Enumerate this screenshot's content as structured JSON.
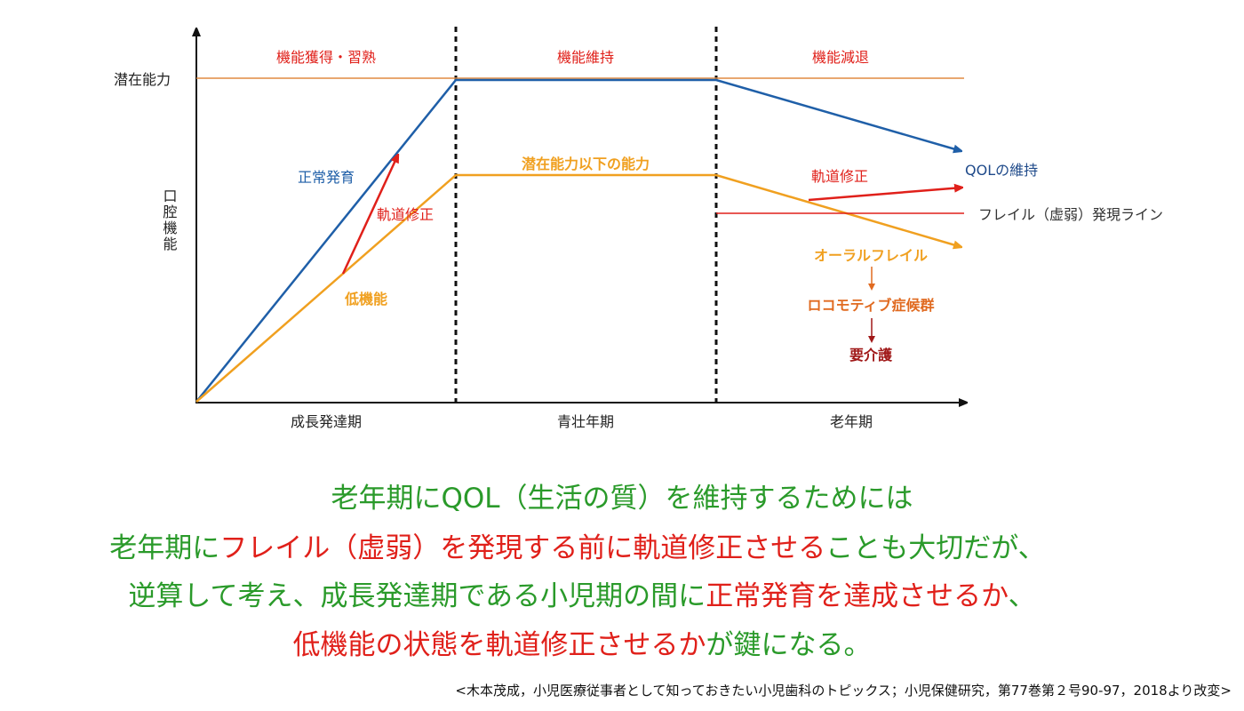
{
  "diagram": {
    "y_axis_label": "口腔機能",
    "potential_label": "潜在能力",
    "phases": [
      "機能獲得・習熟",
      "機能維持",
      "機能減退"
    ],
    "periods": [
      "成長発達期",
      "青壮年期",
      "老年期"
    ],
    "normal_development": "正常発育",
    "course_correction_child": "軌道修正",
    "low_function": "低機能",
    "below_potential": "潜在能力以下の能力",
    "course_correction_elderly": "軌道修正",
    "qol_maintenance": "QOLの維持",
    "frailty_line": "フレイル（虚弱）発現ライン",
    "oral_frailty": "オーラルフレイル",
    "locomotive": "ロコモティブ症候群",
    "care_needed": "要介護",
    "colors": {
      "blue": "#1f5fa8",
      "orange": "#f0a020",
      "red": "#e0201a",
      "potential": "#e08a40",
      "green": "#2a9a2a"
    }
  },
  "message": {
    "line1": "老年期にQOL（生活の質）を維持するためには",
    "line2": [
      "老年期に",
      "フレイル（虚弱）を発現する前に軌道修正させる",
      "ことも大切だが、"
    ],
    "line3": [
      "逆算して考え、成長発達期である小児期の間に",
      "正常発育を達成させるか",
      "、"
    ],
    "line4": [
      "低機能の状態を軌道修正させるか",
      "が鍵になる。"
    ]
  },
  "citation": "<木本茂成，小児医療従事者として知っておきたい小児歯科のトピックス；小児保健研究，第77巻第２号90-97，2018より改変>"
}
